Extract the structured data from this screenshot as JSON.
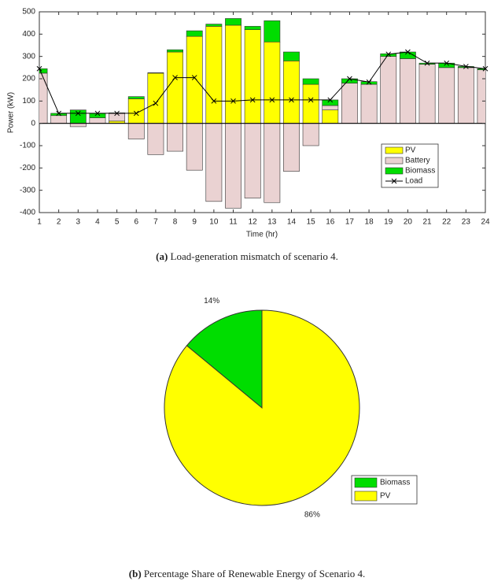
{
  "chart_data": [
    {
      "type": "stacked_bar",
      "caption_label": "(a)",
      "caption": "Load-generation mismatch of scenario 4.",
      "x_label": "Time (hr)",
      "y_label": "Power (kW)",
      "x": [
        1,
        2,
        3,
        4,
        5,
        6,
        7,
        8,
        9,
        10,
        11,
        12,
        13,
        14,
        15,
        16,
        17,
        18,
        19,
        20,
        21,
        22,
        23,
        24
      ],
      "xlim": [
        1,
        24
      ],
      "xticks": [
        1,
        2,
        3,
        4,
        5,
        6,
        7,
        8,
        9,
        10,
        11,
        12,
        13,
        14,
        15,
        16,
        17,
        18,
        19,
        20,
        21,
        22,
        23,
        24
      ],
      "ylim": [
        -400,
        500
      ],
      "yticks": [
        -400,
        -300,
        -200,
        -100,
        0,
        100,
        200,
        300,
        400,
        500
      ],
      "legend": "lower right",
      "series": [
        {
          "name": "PV",
          "color": "#ffff00",
          "values": [
            0,
            0,
            0,
            0,
            10,
            110,
            225,
            320,
            390,
            435,
            440,
            420,
            365,
            280,
            175,
            60,
            0,
            0,
            0,
            0,
            0,
            0,
            0,
            0
          ]
        },
        {
          "name": "Battery",
          "color": "#ead2d2",
          "values": [
            225,
            35,
            -15,
            25,
            35,
            -70,
            -140,
            -125,
            -210,
            -350,
            -380,
            -335,
            -355,
            -215,
            -100,
            20,
            180,
            175,
            300,
            290,
            265,
            250,
            250,
            240
          ]
        },
        {
          "name": "Biomass",
          "color": "#00dd00",
          "values": [
            20,
            10,
            60,
            20,
            2,
            10,
            2,
            10,
            25,
            10,
            30,
            15,
            95,
            40,
            25,
            25,
            20,
            12,
            12,
            30,
            5,
            20,
            5,
            5
          ]
        },
        {
          "name": "Load",
          "type": "line",
          "color": "#000000",
          "values": [
            245,
            45,
            45,
            45,
            45,
            45,
            90,
            205,
            205,
            100,
            100,
            105,
            105,
            105,
            105,
            105,
            200,
            185,
            310,
            320,
            270,
            270,
            255,
            245
          ]
        }
      ]
    },
    {
      "type": "pie",
      "caption_label": "(b)",
      "caption": "Percentage Share of Renewable Energy of Scenario 4.",
      "categories": [
        "Biomass",
        "PV"
      ],
      "values": [
        14,
        86
      ],
      "value_labels": [
        "14%",
        "86%"
      ],
      "colors": [
        "#00dd00",
        "#ffff00"
      ],
      "legend": "lower right"
    }
  ]
}
